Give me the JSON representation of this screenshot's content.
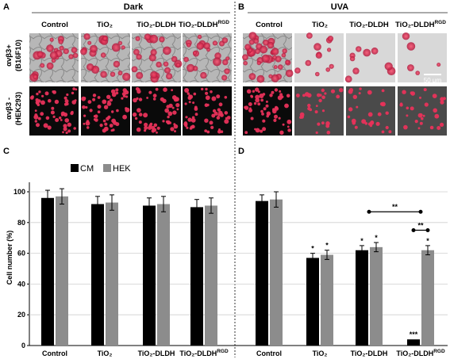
{
  "panels": {
    "A": {
      "letter": "A",
      "title": "Dark"
    },
    "B": {
      "letter": "B",
      "title": "UVA"
    },
    "C": {
      "letter": "C"
    },
    "D": {
      "letter": "D"
    }
  },
  "columns_left": [
    "Control",
    "TiO₂",
    "TiO₂-DLDH",
    "TiO₂-DLDH"
  ],
  "columns_right": [
    "Control",
    "TiO₂",
    "TiO₂-DLDH",
    "TiO₂-DLDH"
  ],
  "superscript": "RGD",
  "row_labels": {
    "top": {
      "line1": "αvβ3+",
      "line2": "(B16F10)"
    },
    "bottom": {
      "line1": "αvβ3 -",
      "line2": "(HEK293)"
    }
  },
  "scale_bar": "50 μm",
  "colors": {
    "cm": "#000000",
    "hek": "#8c8c8c",
    "cell_red": "#e8325a"
  },
  "chart_data": {
    "type": "bar",
    "ylabel": "Cell number (%)",
    "ylim": [
      0,
      100
    ],
    "yticks": [
      0,
      20,
      40,
      60,
      80,
      100
    ],
    "legend": [
      "CM",
      "HEK"
    ],
    "legend_position": "top-left",
    "panels": [
      {
        "panel": "C",
        "condition": "Dark",
        "categories": [
          "Control",
          "TiO₂",
          "TiO₂-DLDH",
          "TiO₂-DLDH"
        ],
        "series": [
          {
            "name": "CM",
            "values": [
              96,
              92,
              91,
              90
            ],
            "errors": [
              5,
              5,
              5,
              5
            ]
          },
          {
            "name": "HEK",
            "values": [
              97,
              93,
              92,
              91
            ],
            "errors": [
              5,
              5,
              5,
              5
            ]
          }
        ]
      },
      {
        "panel": "D",
        "condition": "UVA",
        "categories": [
          "Control",
          "TiO₂",
          "TiO₂-DLDH",
          "TiO₂-DLDH"
        ],
        "series": [
          {
            "name": "CM",
            "values": [
              94,
              57,
              62,
              4
            ],
            "errors": [
              4,
              3,
              3,
              0
            ],
            "stars": [
              "",
              "*",
              "*",
              "***"
            ]
          },
          {
            "name": "HEK",
            "values": [
              95,
              59,
              64,
              62
            ],
            "errors": [
              5,
              3,
              3,
              3
            ],
            "stars": [
              "",
              "*",
              "*",
              "*"
            ]
          }
        ],
        "significance": [
          {
            "label": "**",
            "from": "TiO₂-DLDH",
            "to": "TiO₂-DLDH",
            "level": 87
          },
          {
            "label": "**",
            "from": "TiO₂-DLDH CM",
            "to": "TiO₂-DLDH HEK",
            "level": 75
          }
        ]
      }
    ]
  }
}
